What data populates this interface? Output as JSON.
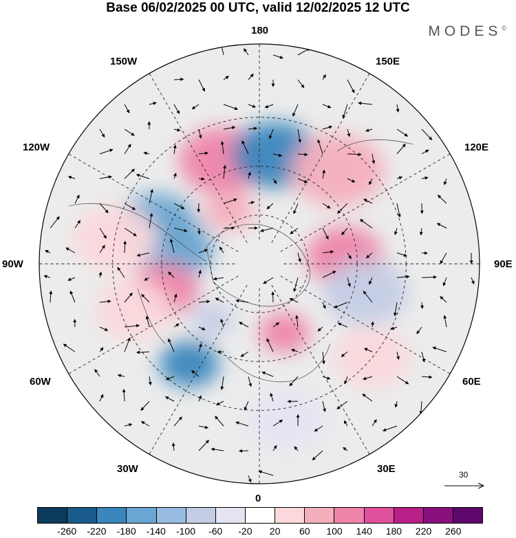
{
  "title": "Base 06/02/2025 00 UTC, valid 12/02/2025 12 UTC",
  "brand": "MODES",
  "brand_mark": "©",
  "longitude_labels": {
    "top": "180",
    "bottom": "0",
    "left": "90W",
    "right": "90E",
    "upper_left": "150W",
    "upper_right": "150E",
    "left_upper": "120W",
    "right_upper": "120E",
    "left_lower": "60W",
    "right_lower": "60E",
    "lower_left": "30W",
    "lower_right": "30E"
  },
  "wind_scale": {
    "label": "30"
  },
  "colorbar": {
    "colors": [
      "#0d3b5c",
      "#1a5b8c",
      "#3a86bd",
      "#6aa6d1",
      "#98bde0",
      "#c4cde6",
      "#e6e4f2",
      "#ffffff",
      "#fbd8dc",
      "#f4afbd",
      "#ee84aa",
      "#e0509c",
      "#b72087",
      "#8a107d",
      "#5e086e"
    ],
    "tick_labels": [
      "-260",
      "-220",
      "-180",
      "-140",
      "-100",
      "-60",
      "-20",
      "20",
      "60",
      "100",
      "140",
      "180",
      "220",
      "260"
    ]
  },
  "anomaly_blobs": [
    {
      "lat": 45,
      "lon": -160,
      "level": 10,
      "size": 1.0
    },
    {
      "lat": 45,
      "lon": 172,
      "level": 2,
      "size": 1.0
    },
    {
      "lat": 40,
      "lon": 140,
      "level": 9,
      "size": 1.1
    },
    {
      "lat": 65,
      "lon": -150,
      "level": 9,
      "size": 0.6
    },
    {
      "lat": 45,
      "lon": -112,
      "level": 3,
      "size": 0.9
    },
    {
      "lat": 55,
      "lon": -100,
      "level": 3,
      "size": 0.9
    },
    {
      "lat": 55,
      "lon": 95,
      "level": 10,
      "size": 0.9
    },
    {
      "lat": 50,
      "lon": -75,
      "level": 10,
      "size": 0.8
    },
    {
      "lat": 40,
      "lon": -35,
      "level": 2,
      "size": 0.7
    },
    {
      "lat": 60,
      "lon": 20,
      "level": 10,
      "size": 0.6
    },
    {
      "lat": 45,
      "lon": 75,
      "level": 5,
      "size": 1.0
    },
    {
      "lat": 30,
      "lon": 50,
      "level": 8,
      "size": 0.9
    },
    {
      "lat": 35,
      "lon": -70,
      "level": 8,
      "size": 0.9
    },
    {
      "lat": 60,
      "lon": -40,
      "level": 5,
      "size": 0.5
    },
    {
      "lat": 25,
      "lon": 10,
      "level": 6,
      "size": 0.9
    },
    {
      "lat": 30,
      "lon": -100,
      "level": 8,
      "size": 1.0
    }
  ]
}
